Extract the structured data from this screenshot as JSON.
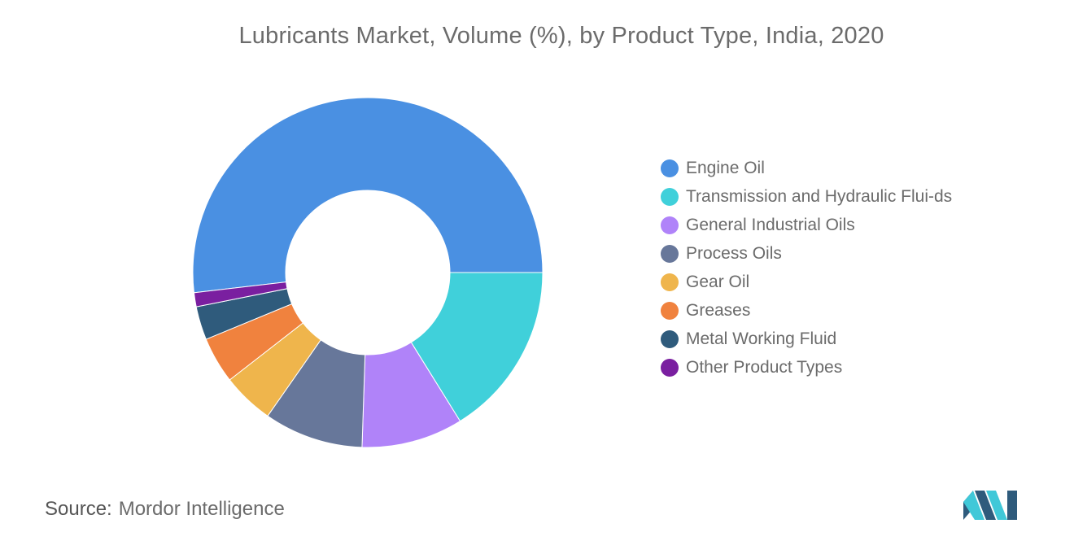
{
  "chart_data": {
    "type": "pie",
    "title": "Lubricants Market, Volume (%), by Product Type, India, 2020",
    "donut": true,
    "categories": [
      "Engine Oil",
      "Transmission and Hydraulic Flui-ds",
      "General Industrial Oils",
      "Process Oils",
      "Gear Oil",
      "Greases",
      "Metal Working Fluid",
      "Other Product Types"
    ],
    "values": [
      52.0,
      16.2,
      9.4,
      9.2,
      4.8,
      4.3,
      3.1,
      1.3
    ],
    "colors": [
      "#4a90e2",
      "#40d0da",
      "#b083f9",
      "#67779a",
      "#efb54c",
      "#f0823e",
      "#2f5b7c",
      "#7a1fa0"
    ],
    "legend_position": "right"
  },
  "legend": {
    "items": [
      {
        "label": "Engine Oil",
        "color": "#4a90e2"
      },
      {
        "label": "Transmission and Hydraulic Flui-ds",
        "color": "#40d0da"
      },
      {
        "label": "General Industrial Oils",
        "color": "#b083f9"
      },
      {
        "label": "Process Oils",
        "color": "#67779a"
      },
      {
        "label": "Gear Oil",
        "color": "#efb54c"
      },
      {
        "label": "Greases",
        "color": "#f0823e"
      },
      {
        "label": "Metal Working Fluid",
        "color": "#2f5b7c"
      },
      {
        "label": "Other Product Types",
        "color": "#7a1fa0"
      }
    ]
  },
  "footer": {
    "source_label": "Source:",
    "source_name": "Mordor Intelligence"
  },
  "logo": {
    "icon": "mordor-intelligence-logo-icon",
    "colors": [
      "#2f5b7c",
      "#40c8d8"
    ]
  }
}
